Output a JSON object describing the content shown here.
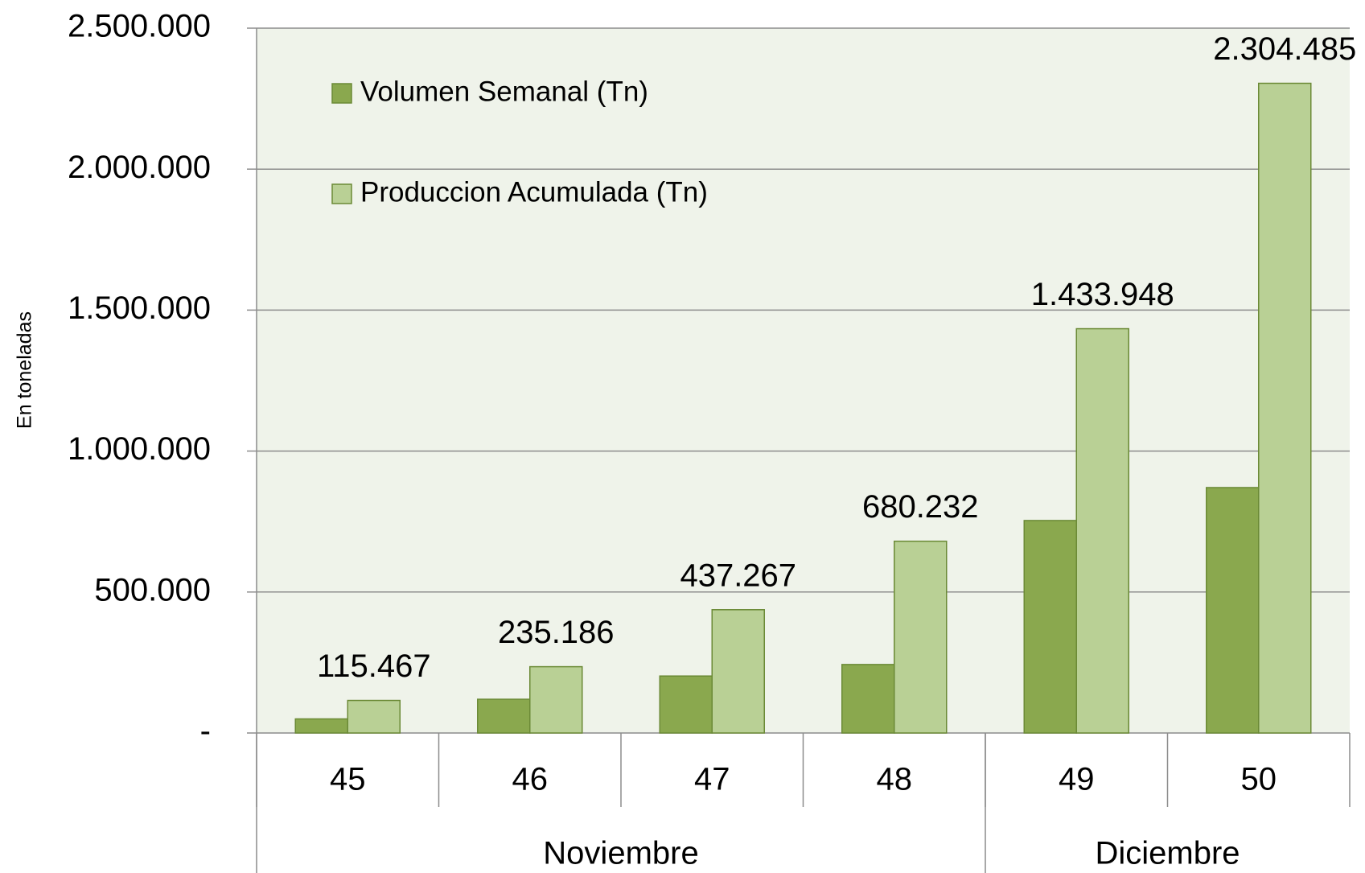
{
  "chart_data": {
    "type": "bar",
    "y_label": "En toneladas",
    "groups": [
      {
        "name": "Noviembre",
        "categories": [
          "45",
          "46",
          "47",
          "48"
        ]
      },
      {
        "name": "Diciembre",
        "categories": [
          "49",
          "50"
        ]
      }
    ],
    "series": [
      {
        "name": "Volumen Semanal (Tn)",
        "color": "#8aa84e",
        "values": [
          50000,
          119719,
          202081,
          242965,
          753716,
          870537
        ]
      },
      {
        "name": "Produccion Acumulada (Tn)",
        "color": "#b9d095",
        "values": [
          115467,
          235186,
          437267,
          680232,
          1433948,
          2304485
        ],
        "value_labels": [
          "115.467",
          "235.186",
          "437.267",
          "680.232",
          "1.433.948",
          "2.304.485"
        ]
      }
    ],
    "ylim": [
      0,
      2500000
    ],
    "yticks": [
      {
        "value": 0,
        "label": "-"
      },
      {
        "value": 500000,
        "label": "500.000"
      },
      {
        "value": 1000000,
        "label": "1.000.000"
      },
      {
        "value": 1500000,
        "label": "1.500.000"
      },
      {
        "value": 2000000,
        "label": "2.000.000"
      },
      {
        "value": 2500000,
        "label": "2.500.000"
      }
    ],
    "grid": true,
    "legend": "upper left"
  }
}
